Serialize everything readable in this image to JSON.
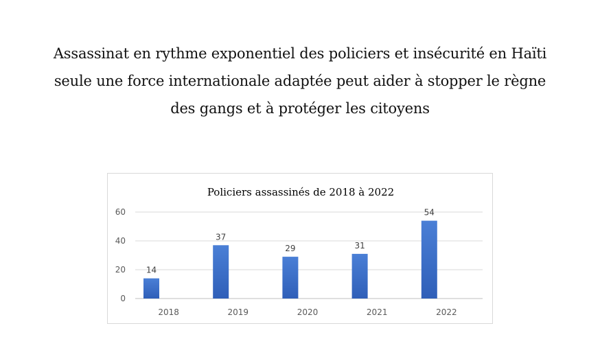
{
  "headline": {
    "line1": "Assassinat en rythme exponentiel des policiers et insécurité en Haïti",
    "line2": "seule une force internationale adaptée peut aider à stopper le règne",
    "line3": "des gangs et à protéger les citoyens"
  },
  "chart_data": {
    "type": "bar",
    "title": "Policiers assassinés de 2018 à 2022",
    "categories": [
      "2018",
      "2019",
      "2020",
      "2021",
      "2022"
    ],
    "values": [
      14,
      37,
      29,
      31,
      54
    ],
    "data_labels": [
      "14",
      "37",
      "29",
      "31",
      "54"
    ],
    "y_ticks": [
      "0",
      "20",
      "40",
      "60"
    ],
    "ylim": [
      0,
      60
    ],
    "xlabel": "",
    "ylabel": "",
    "grid": true,
    "legend": "none",
    "bar_color_top": "#4a7fd6",
    "bar_color_bottom": "#2f5fb8"
  }
}
